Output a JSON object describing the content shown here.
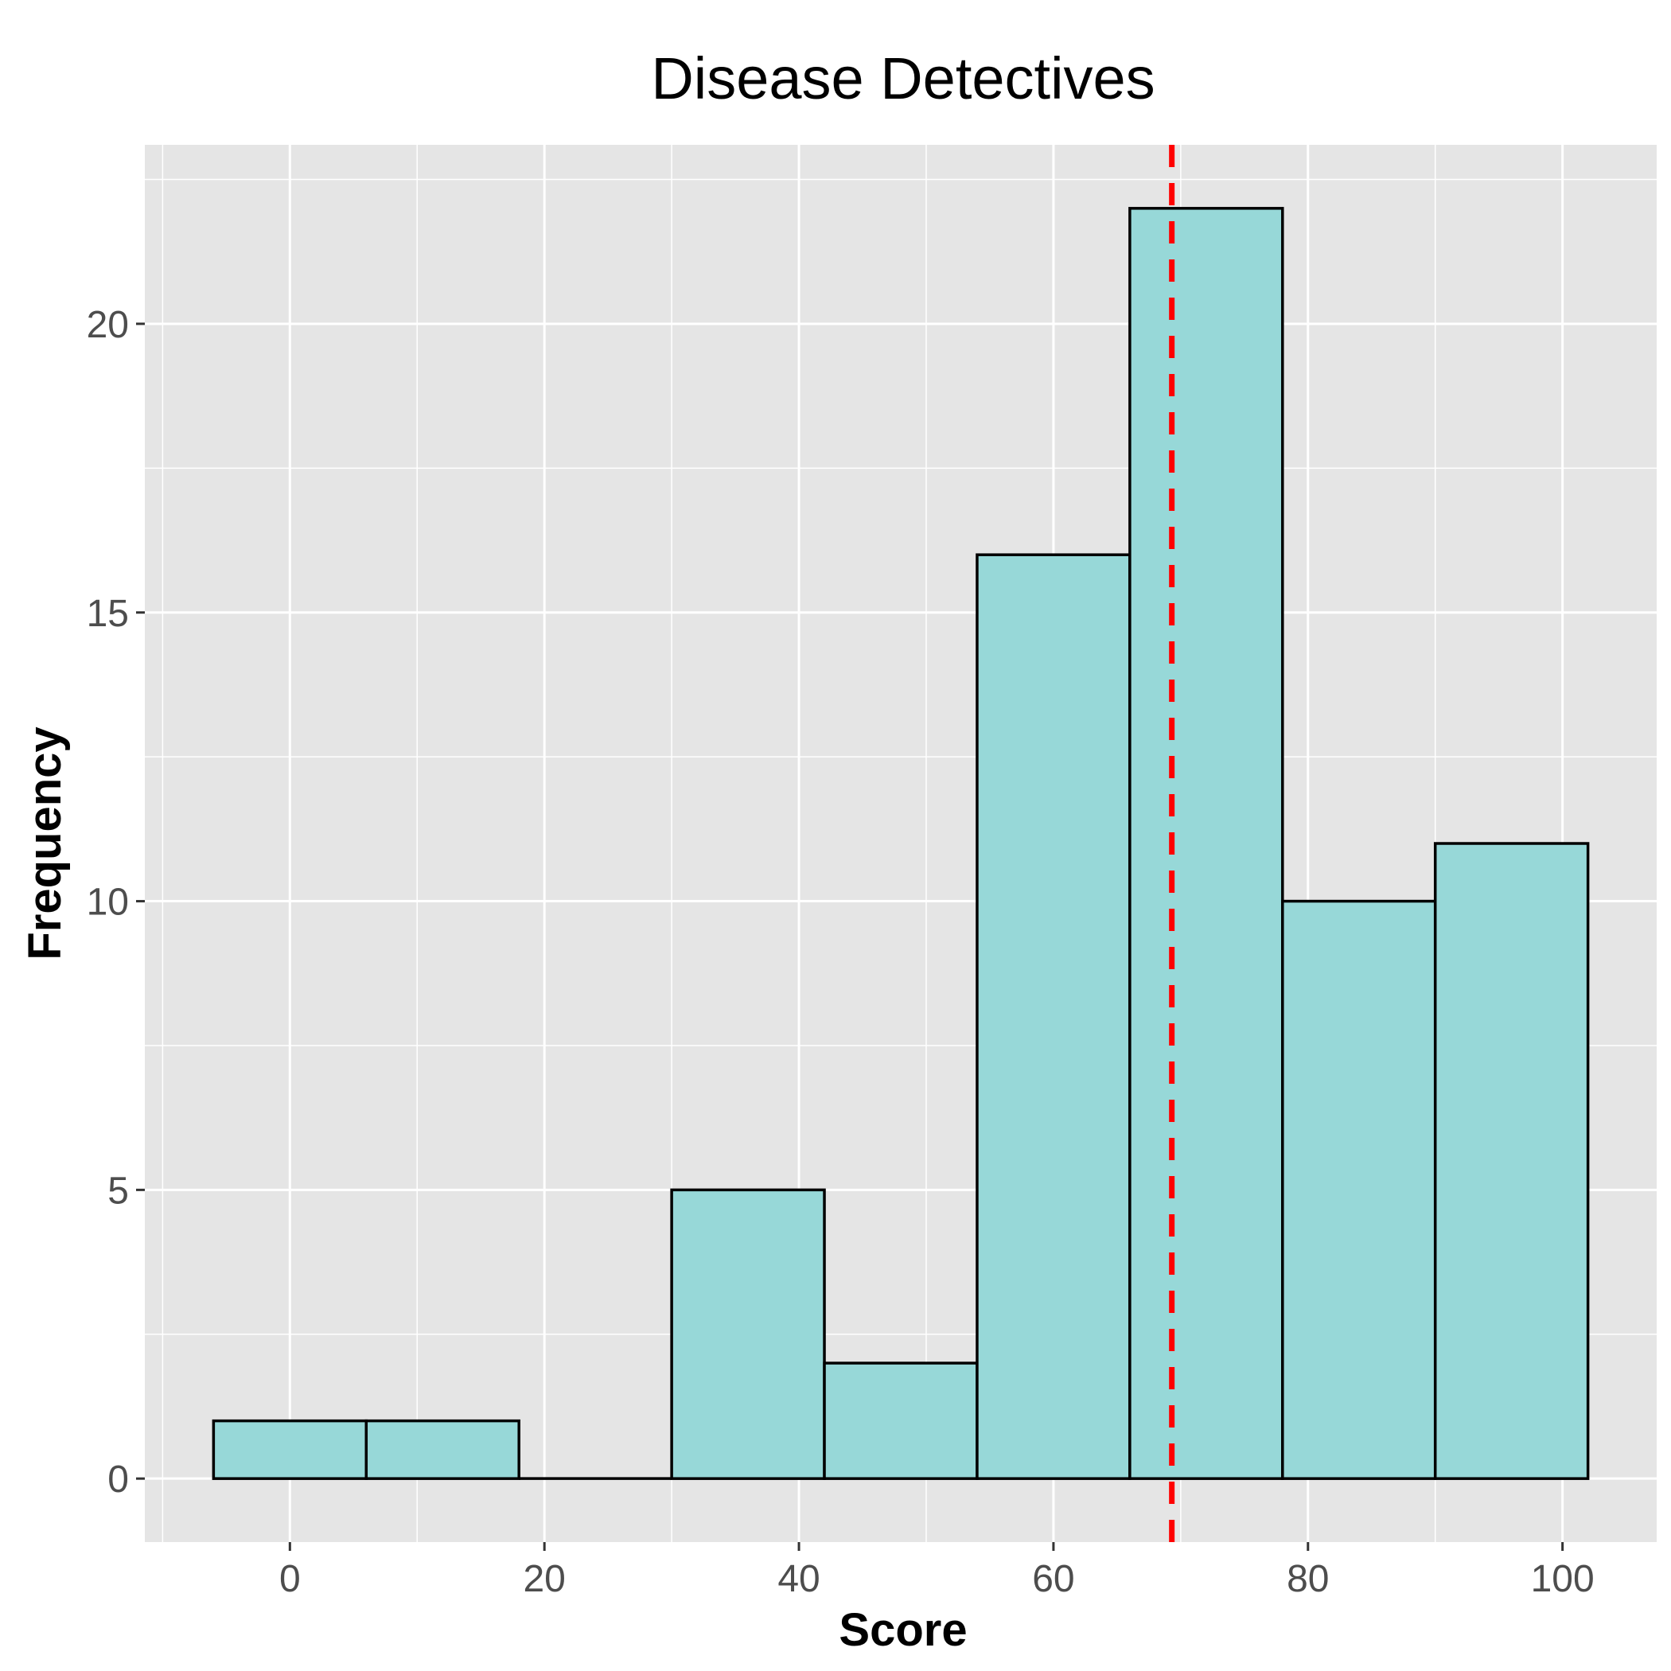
{
  "chart_data": {
    "type": "bar",
    "title": "Disease Detectives",
    "xlabel": "Score",
    "ylabel": "Frequency",
    "bin_width": 12,
    "bins": [
      {
        "start": -6,
        "end": 6,
        "count": 1
      },
      {
        "start": 6,
        "end": 18,
        "count": 1
      },
      {
        "start": 18,
        "end": 30,
        "count": 0
      },
      {
        "start": 30,
        "end": 42,
        "count": 5
      },
      {
        "start": 42,
        "end": 54,
        "count": 2
      },
      {
        "start": 54,
        "end": 66,
        "count": 16
      },
      {
        "start": 66,
        "end": 78,
        "count": 22
      },
      {
        "start": 78,
        "end": 90,
        "count": 10
      },
      {
        "start": 90,
        "end": 102,
        "count": 11
      }
    ],
    "mean_line": {
      "x": 69.3,
      "color": "#ff0000",
      "style": "dashed"
    },
    "xlim": [
      -11.4,
      107.4
    ],
    "ylim": [
      -1.1,
      23.1
    ],
    "x_ticks": [
      "0",
      "20",
      "40",
      "60",
      "80",
      "100"
    ],
    "x_tick_values": [
      0,
      20,
      40,
      60,
      80,
      100
    ],
    "y_ticks": [
      "0",
      "5",
      "10",
      "15",
      "20"
    ],
    "y_tick_values": [
      0,
      5,
      10,
      15,
      20
    ],
    "grid": true,
    "legend": "none",
    "colors": {
      "bar_fill": "#97d8d8",
      "bar_outline": "#000000",
      "panel_background": "#e5e5e5",
      "grid": "#ffffff"
    }
  }
}
